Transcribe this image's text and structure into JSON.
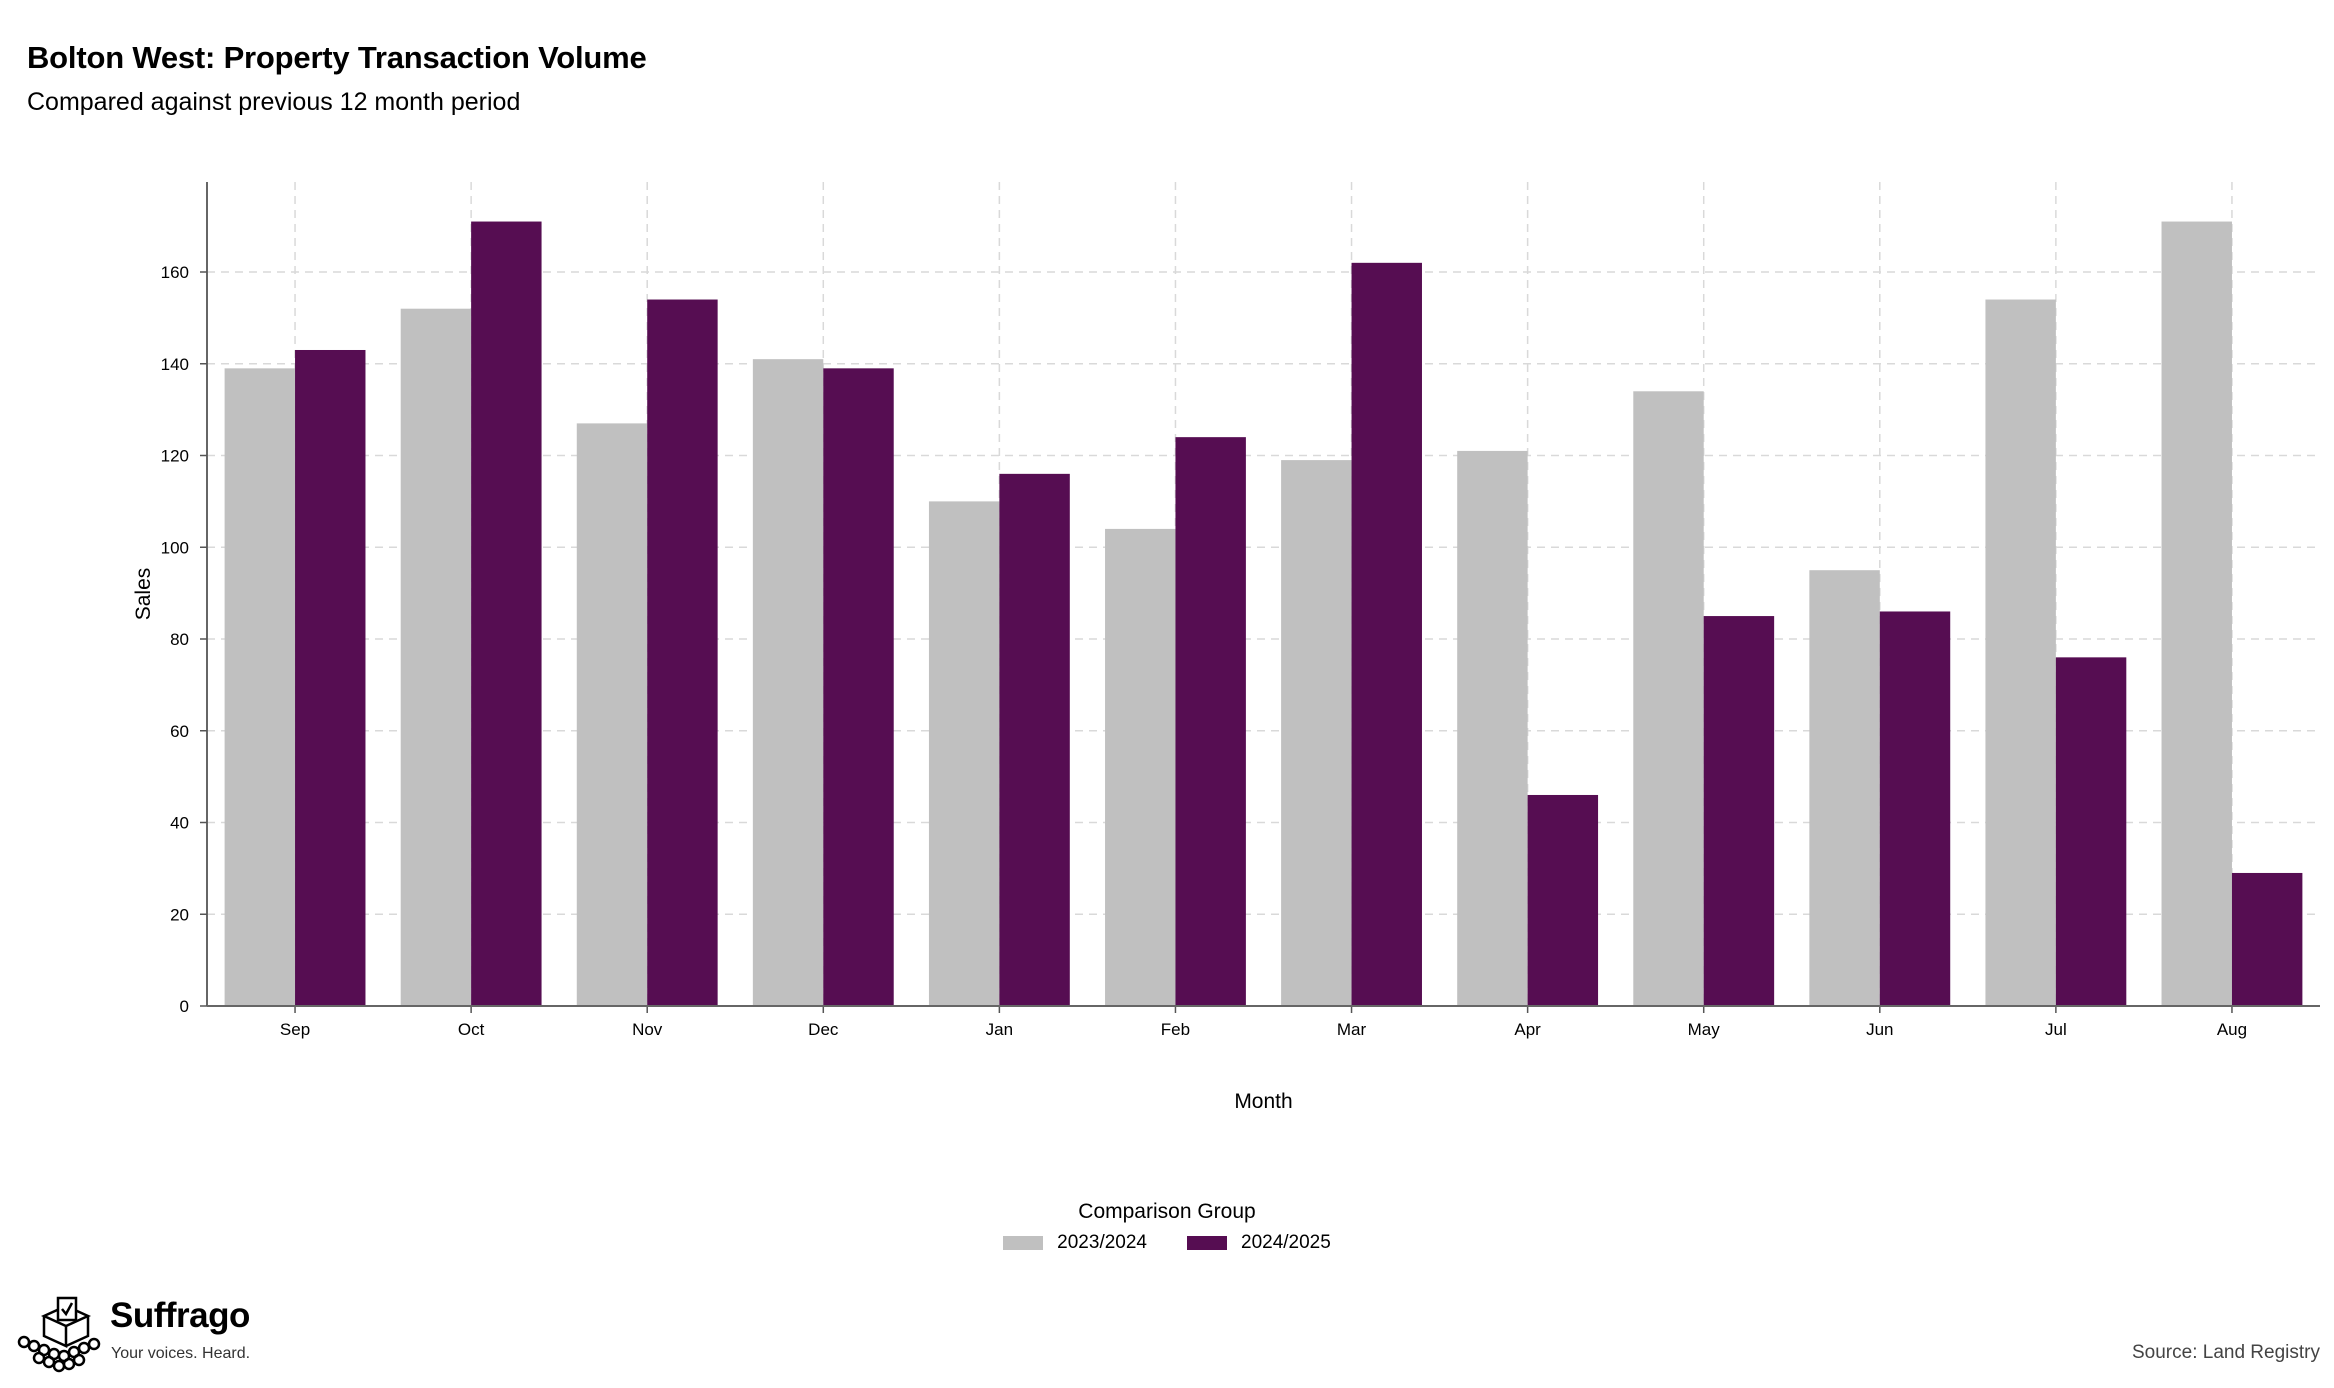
{
  "chart_data": {
    "type": "bar",
    "title": "Bolton West: Property Transaction Volume",
    "subtitle": "Compared against previous 12 month period",
    "xlabel": "Month",
    "ylabel": "Sales",
    "categories": [
      "Sep",
      "Oct",
      "Nov",
      "Dec",
      "Jan",
      "Feb",
      "Mar",
      "Apr",
      "May",
      "Jun",
      "Jul",
      "Aug"
    ],
    "series": [
      {
        "name": "2023/2024",
        "color": "#c0c0c0",
        "values": [
          139,
          152,
          127,
          141,
          110,
          104,
          119,
          121,
          134,
          95,
          154,
          171
        ]
      },
      {
        "name": "2024/2025",
        "color": "#560d52",
        "values": [
          143,
          171,
          154,
          139,
          116,
          124,
          162,
          46,
          85,
          86,
          76,
          29
        ]
      }
    ],
    "yticks": [
      0,
      20,
      40,
      60,
      80,
      100,
      120,
      140,
      160
    ],
    "ylim": [
      0,
      180
    ],
    "grid": true,
    "legend": {
      "title": "Comparison Group",
      "placement": "bottom-center"
    }
  },
  "brand": {
    "name": "Suffrago",
    "tagline": "Your voices. Heard."
  },
  "source": "Source: Land Registry"
}
